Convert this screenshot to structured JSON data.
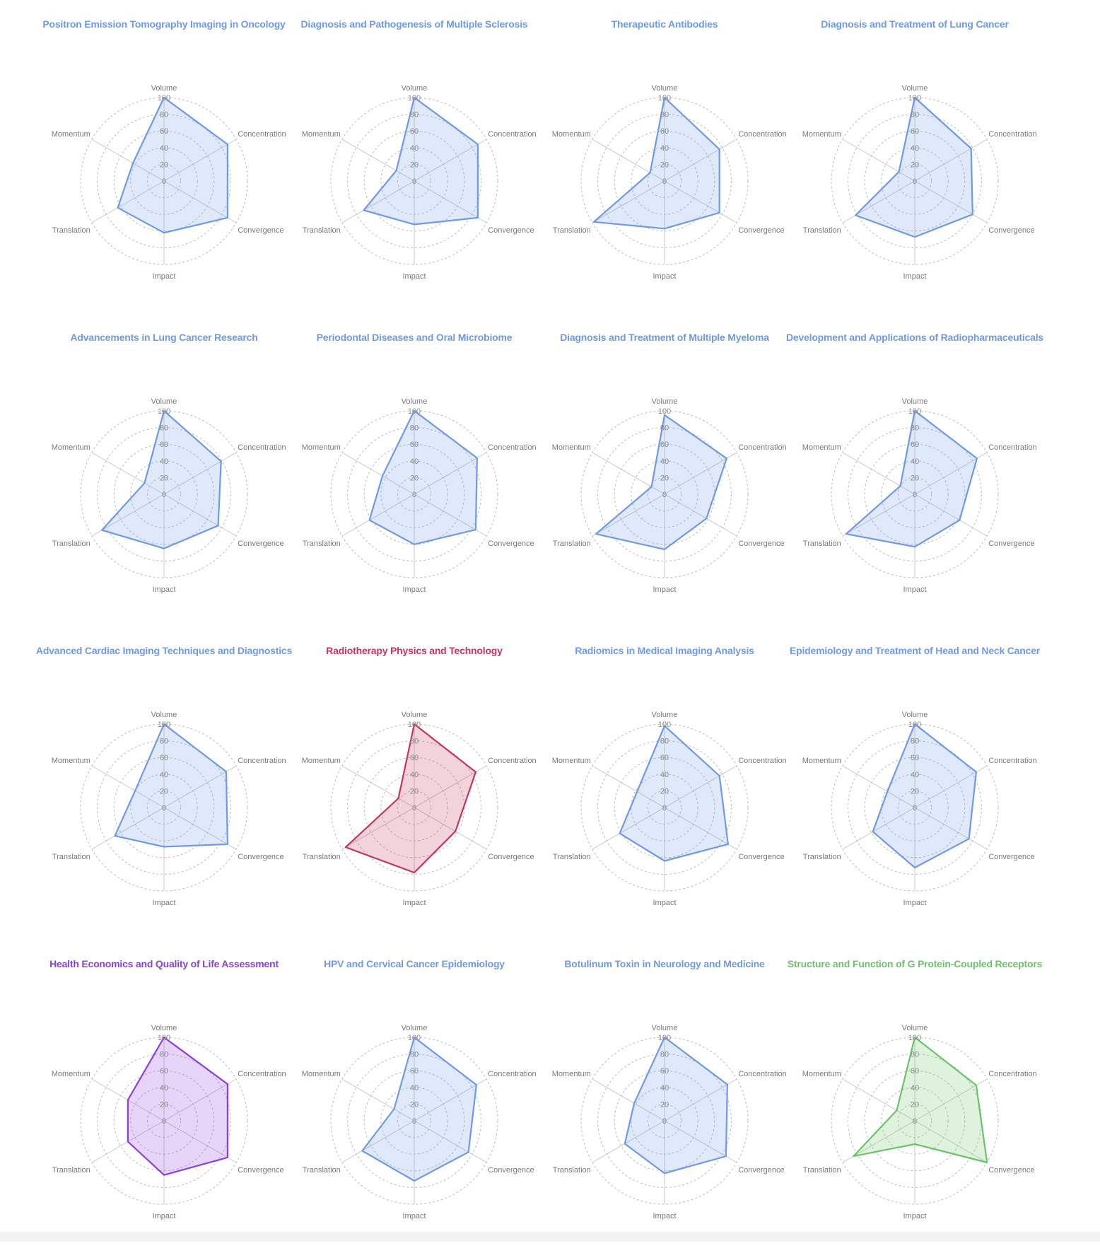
{
  "colors": {
    "blue": "#6f9ae8",
    "red": "#c5365f",
    "purple": "#8b3fe0",
    "green": "#6cc46a",
    "grid": "#bdbdbd",
    "axis": "#c8c8c8"
  },
  "chart_data": [
    {
      "type": "radar",
      "title": "Positron Emission Tomography Imaging in Oncology",
      "color": "blue",
      "axes": [
        "Volume",
        "Concentration",
        "Convergence",
        "Impact",
        "Translation",
        "Momentum"
      ],
      "ticks": [
        0,
        20,
        40,
        60,
        80,
        100
      ],
      "range": [
        0,
        100
      ],
      "values": [
        100,
        88,
        88,
        62,
        64,
        43
      ]
    },
    {
      "type": "radar",
      "title": "Diagnosis and Pathogenesis of Multiple Sclerosis",
      "color": "blue",
      "axes": [
        "Volume",
        "Concentration",
        "Convergence",
        "Impact",
        "Translation",
        "Momentum"
      ],
      "ticks": [
        0,
        20,
        40,
        60,
        80,
        100
      ],
      "range": [
        0,
        100
      ],
      "values": [
        100,
        88,
        88,
        52,
        70,
        25
      ]
    },
    {
      "type": "radar",
      "title": "Therapeutic Antibodies",
      "color": "blue",
      "axes": [
        "Volume",
        "Concentration",
        "Convergence",
        "Impact",
        "Translation",
        "Momentum"
      ],
      "ticks": [
        0,
        20,
        40,
        60,
        80,
        100
      ],
      "range": [
        0,
        100
      ],
      "values": [
        100,
        76,
        76,
        57,
        98,
        20
      ]
    },
    {
      "type": "radar",
      "title": "Diagnosis and Treatment of Lung Cancer",
      "color": "blue",
      "axes": [
        "Volume",
        "Concentration",
        "Convergence",
        "Impact",
        "Translation",
        "Momentum"
      ],
      "ticks": [
        0,
        20,
        40,
        60,
        80,
        100
      ],
      "range": [
        0,
        100
      ],
      "values": [
        100,
        78,
        80,
        67,
        82,
        22
      ]
    },
    {
      "type": "radar",
      "title": "Advancements in Lung Cancer Research",
      "color": "blue",
      "axes": [
        "Volume",
        "Concentration",
        "Convergence",
        "Impact",
        "Translation",
        "Momentum"
      ],
      "ticks": [
        0,
        20,
        40,
        60,
        80,
        100
      ],
      "range": [
        0,
        100
      ],
      "values": [
        100,
        79,
        75,
        65,
        86,
        27
      ]
    },
    {
      "type": "radar",
      "title": "Periodontal Diseases and Oral Microbiome",
      "color": "blue",
      "axes": [
        "Volume",
        "Concentration",
        "Convergence",
        "Impact",
        "Translation",
        "Momentum"
      ],
      "ticks": [
        0,
        20,
        40,
        60,
        80,
        100
      ],
      "range": [
        0,
        100
      ],
      "values": [
        100,
        87,
        85,
        60,
        62,
        44
      ]
    },
    {
      "type": "radar",
      "title": "Diagnosis and Treatment of Multiple Myeloma",
      "color": "blue",
      "axes": [
        "Volume",
        "Concentration",
        "Convergence",
        "Impact",
        "Translation",
        "Momentum"
      ],
      "ticks": [
        0,
        20,
        40,
        60,
        80,
        100
      ],
      "range": [
        0,
        100
      ],
      "values": [
        95,
        86,
        58,
        66,
        95,
        18
      ]
    },
    {
      "type": "radar",
      "title": "Development and Applications of Radiopharmaceuticals",
      "color": "blue",
      "axes": [
        "Volume",
        "Concentration",
        "Convergence",
        "Impact",
        "Translation",
        "Momentum"
      ],
      "ticks": [
        0,
        20,
        40,
        60,
        80,
        100
      ],
      "range": [
        0,
        100
      ],
      "values": [
        100,
        86,
        62,
        63,
        95,
        20
      ]
    },
    {
      "type": "radar",
      "title": "Advanced Cardiac Imaging Techniques and Diagnostics",
      "color": "blue",
      "axes": [
        "Volume",
        "Concentration",
        "Convergence",
        "Impact",
        "Translation",
        "Momentum"
      ],
      "ticks": [
        0,
        20,
        40,
        60,
        80,
        100
      ],
      "range": [
        0,
        100
      ],
      "values": [
        100,
        86,
        88,
        47,
        68,
        40
      ]
    },
    {
      "type": "radar",
      "title": "Radiotherapy Physics and Technology",
      "color": "red",
      "axes": [
        "Volume",
        "Concentration",
        "Convergence",
        "Impact",
        "Translation",
        "Momentum"
      ],
      "ticks": [
        0,
        20,
        40,
        60,
        80,
        100
      ],
      "range": [
        0,
        100
      ],
      "values": [
        100,
        85,
        57,
        78,
        95,
        22
      ]
    },
    {
      "type": "radar",
      "title": "Radiomics in Medical Imaging Analysis",
      "color": "blue",
      "axes": [
        "Volume",
        "Concentration",
        "Convergence",
        "Impact",
        "Translation",
        "Momentum"
      ],
      "ticks": [
        0,
        20,
        40,
        60,
        80,
        100
      ],
      "range": [
        0,
        100
      ],
      "values": [
        98,
        76,
        88,
        64,
        62,
        38
      ]
    },
    {
      "type": "radar",
      "title": "Epidemiology and Treatment of Head and Neck Cancer",
      "color": "blue",
      "axes": [
        "Volume",
        "Concentration",
        "Convergence",
        "Impact",
        "Translation",
        "Momentum"
      ],
      "ticks": [
        0,
        20,
        40,
        60,
        80,
        100
      ],
      "range": [
        0,
        100
      ],
      "values": [
        100,
        85,
        75,
        72,
        58,
        38
      ]
    },
    {
      "type": "radar",
      "title": "Health Economics and Quality of Life Assessment",
      "color": "purple",
      "axes": [
        "Volume",
        "Concentration",
        "Convergence",
        "Impact",
        "Translation",
        "Momentum"
      ],
      "ticks": [
        0,
        20,
        40,
        60,
        80,
        100
      ],
      "range": [
        0,
        100
      ],
      "values": [
        100,
        88,
        88,
        65,
        50,
        50
      ]
    },
    {
      "type": "radar",
      "title": "HPV and Cervical Cancer Epidemiology",
      "color": "blue",
      "axes": [
        "Volume",
        "Concentration",
        "Convergence",
        "Impact",
        "Translation",
        "Momentum"
      ],
      "ticks": [
        0,
        20,
        40,
        60,
        80,
        100
      ],
      "range": [
        0,
        100
      ],
      "values": [
        100,
        86,
        75,
        72,
        72,
        28
      ]
    },
    {
      "type": "radar",
      "title": "Botulinum Toxin in Neurology and Medicine",
      "color": "blue",
      "axes": [
        "Volume",
        "Concentration",
        "Convergence",
        "Impact",
        "Translation",
        "Momentum"
      ],
      "ticks": [
        0,
        20,
        40,
        60,
        80,
        100
      ],
      "range": [
        0,
        100
      ],
      "values": [
        100,
        87,
        85,
        63,
        55,
        42
      ]
    },
    {
      "type": "radar",
      "title": "Structure and Function of G Protein-Coupled Receptors",
      "color": "green",
      "axes": [
        "Volume",
        "Concentration",
        "Convergence",
        "Impact",
        "Translation",
        "Momentum"
      ],
      "ticks": [
        0,
        20,
        40,
        60,
        80,
        100
      ],
      "range": [
        0,
        100
      ],
      "values": [
        100,
        85,
        100,
        28,
        85,
        25
      ]
    }
  ]
}
